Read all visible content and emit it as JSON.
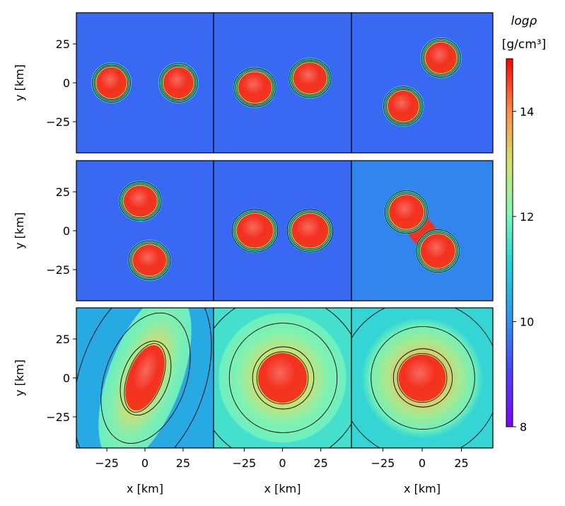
{
  "chart_data": {
    "type": "heatmap",
    "layout": {
      "rows": 3,
      "cols": 3,
      "shared_axes": true
    },
    "xlabel": "x [km]",
    "ylabel": "y [km]",
    "xlim": [
      -45,
      45
    ],
    "ylim": [
      -45,
      45
    ],
    "x_ticks": [
      -25,
      0,
      25
    ],
    "y_ticks": [
      25,
      0,
      -25
    ],
    "colorbar": {
      "title_line1": "logρ",
      "title_line2": "[g/cm³]",
      "range": [
        8,
        15
      ],
      "ticks": [
        8,
        10,
        12,
        14
      ],
      "colormap": "rainbow",
      "stops": [
        "#7f00ff",
        "#3c5df6",
        "#1ec9dd",
        "#80ffb4",
        "#d8e06a",
        "#ff8a46",
        "#ff0000"
      ]
    },
    "colors": {
      "background_low": "#4660f0",
      "contour": "#000000",
      "core": "#f4301f"
    },
    "panels": [
      {
        "row": 0,
        "col": 0,
        "stage": "binary-wide",
        "background_logrho": 9.3,
        "blobs": [
          {
            "x": -22,
            "y": 0,
            "rx": 10,
            "ry": 10,
            "logrho": 14.8
          },
          {
            "x": 22,
            "y": 0,
            "rx": 10,
            "ry": 10,
            "logrho": 14.8
          }
        ]
      },
      {
        "row": 0,
        "col": 1,
        "stage": "binary-inspiral",
        "background_logrho": 9.3,
        "blobs": [
          {
            "x": -18,
            "y": -3,
            "rx": 11,
            "ry": 10,
            "logrho": 14.8
          },
          {
            "x": 18,
            "y": 3,
            "rx": 11,
            "ry": 10,
            "logrho": 14.8
          }
        ]
      },
      {
        "row": 0,
        "col": 2,
        "stage": "binary-inspiral",
        "background_logrho": 9.3,
        "blobs": [
          {
            "x": -12,
            "y": -15,
            "rx": 10,
            "ry": 10,
            "logrho": 14.8
          },
          {
            "x": 12,
            "y": 16,
            "rx": 10,
            "ry": 10,
            "logrho": 14.8
          }
        ]
      },
      {
        "row": 1,
        "col": 0,
        "stage": "binary-late",
        "background_logrho": 9.3,
        "blobs": [
          {
            "x": -3,
            "y": 19,
            "rx": 11,
            "ry": 10,
            "logrho": 14.8
          },
          {
            "x": 3,
            "y": -19,
            "rx": 11,
            "ry": 10,
            "logrho": 14.8
          }
        ]
      },
      {
        "row": 1,
        "col": 1,
        "stage": "binary-touching",
        "background_logrho": 9.3,
        "blobs": [
          {
            "x": -18,
            "y": 0,
            "rx": 12,
            "ry": 11,
            "logrho": 14.8
          },
          {
            "x": 18,
            "y": 0,
            "rx": 12,
            "ry": 11,
            "logrho": 14.8
          }
        ]
      },
      {
        "row": 1,
        "col": 2,
        "stage": "merger",
        "background_logrho": 9.6,
        "blobs": [
          {
            "x": -10,
            "y": 12,
            "rx": 11,
            "ry": 11,
            "logrho": 14.8
          },
          {
            "x": 10,
            "y": -13,
            "rx": 11,
            "ry": 11,
            "logrho": 14.8
          }
        ]
      },
      {
        "row": 2,
        "col": 0,
        "stage": "remnant-bar",
        "background_logrho": 10.0,
        "blobs": [
          {
            "x": 0,
            "y": 0,
            "rx": 11,
            "ry": 22,
            "rotate": 20,
            "logrho": 14.8
          }
        ]
      },
      {
        "row": 2,
        "col": 1,
        "stage": "remnant",
        "background_logrho": 10.8,
        "blobs": [
          {
            "x": 0,
            "y": 0,
            "rx": 16,
            "ry": 16,
            "logrho": 14.8
          }
        ]
      },
      {
        "row": 2,
        "col": 2,
        "stage": "remnant-axisymmetric",
        "background_logrho": 10.6,
        "blobs": [
          {
            "x": 0,
            "y": 0,
            "rx": 15,
            "ry": 15,
            "logrho": 14.8
          }
        ]
      }
    ]
  }
}
